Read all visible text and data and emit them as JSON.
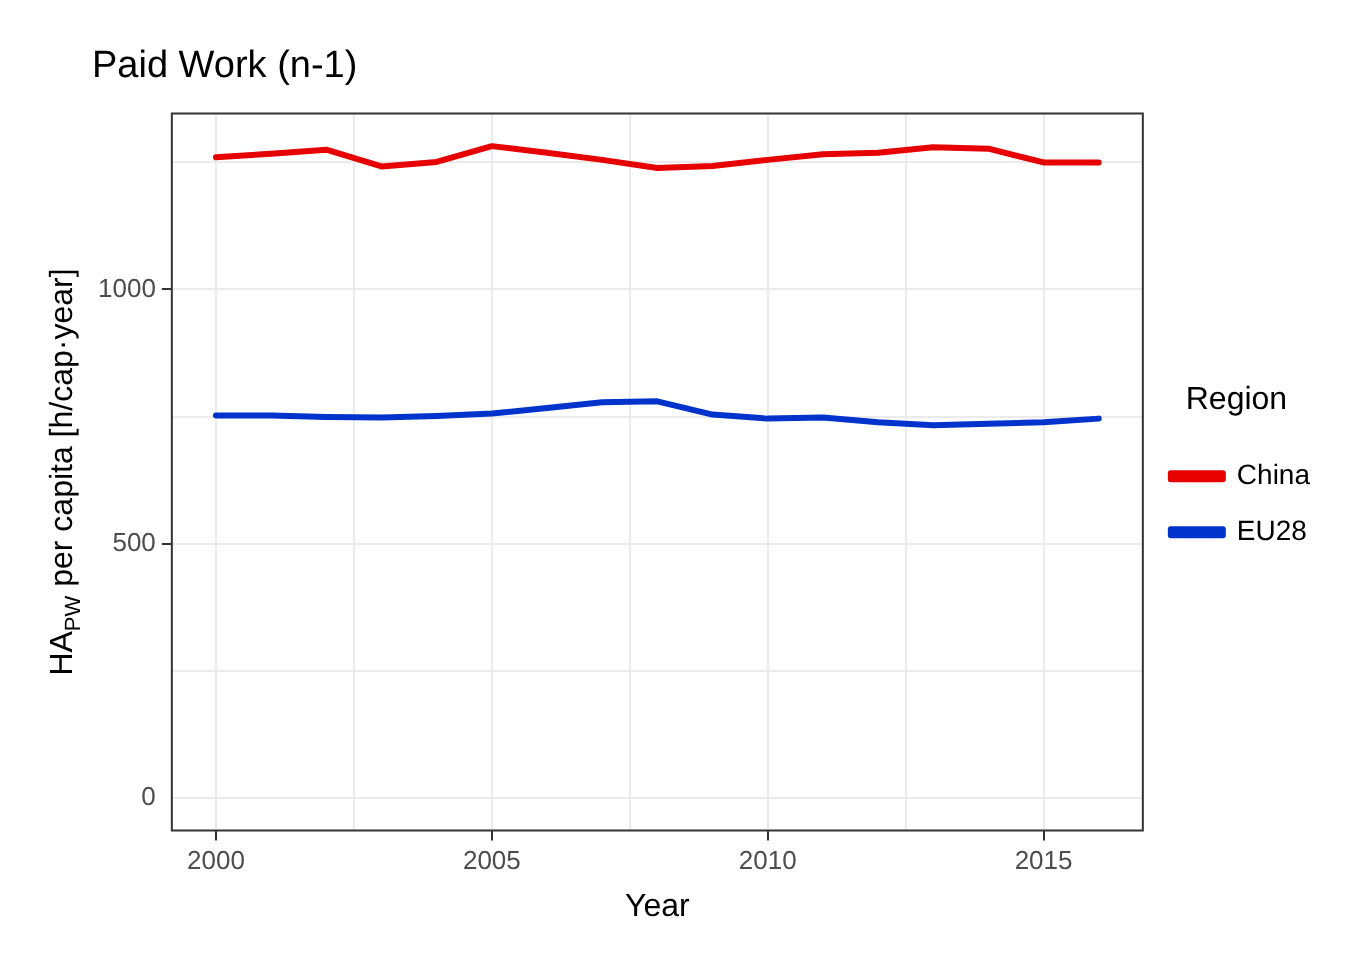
{
  "chart_data": {
    "type": "line",
    "title": "Paid Work (n-1)",
    "xlabel": "Year",
    "ylabel": "HA$_{PW}$ per capita [h/cap·year]",
    "legend_title": "Region",
    "legend": "right",
    "grid": true,
    "line_style": "solid",
    "marker": "none",
    "x": [
      2000,
      2001,
      2002,
      2003,
      2004,
      2005,
      2006,
      2007,
      2008,
      2009,
      2010,
      2011,
      2012,
      2013,
      2014,
      2015,
      2016
    ],
    "xlim": [
      1999.2,
      2016.8
    ],
    "xticks": [
      2000,
      {
        "value": 2002.5,
        "label": null
      },
      2005,
      {
        "value": 2007.5,
        "label": null
      },
      2010,
      {
        "value": 2012.5,
        "label": null
      },
      2015
    ],
    "ylim": [
      -64,
      1346
    ],
    "yticks": [
      0,
      {
        "value": 250,
        "label": null
      },
      500,
      {
        "value": 750,
        "label": null
      },
      1000,
      {
        "value": 1250,
        "label": null
      }
    ],
    "series": [
      {
        "name": "China",
        "color": "#e60000",
        "values": [
          1260,
          1267,
          1275,
          1242,
          1251,
          1282,
          1269,
          1255,
          1239,
          1243,
          1255,
          1266,
          1269,
          1280,
          1277,
          1250,
          1250
        ]
      },
      {
        "name": "EU28",
        "color": "#0033cc",
        "values": [
          752,
          752,
          749,
          748,
          751,
          756,
          767,
          778,
          780,
          754,
          746,
          748,
          739,
          733,
          736,
          739,
          746
        ]
      }
    ]
  }
}
